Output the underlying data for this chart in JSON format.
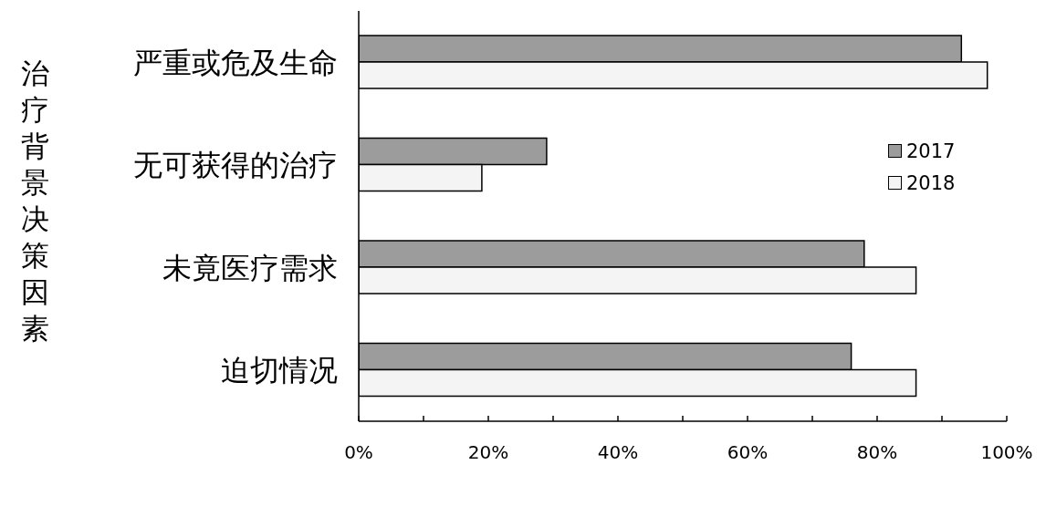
{
  "chart_data": {
    "type": "bar",
    "orientation": "horizontal",
    "ylabel": "治疗背景决策因素",
    "categories": [
      "严重或危及生命",
      "无可获得的治疗",
      "未竟医疗需求",
      "迫切情况"
    ],
    "series": [
      {
        "name": "2017",
        "color": "#9c9c9c",
        "values": [
          93,
          29,
          78,
          76
        ]
      },
      {
        "name": "2018",
        "color": "#f4f4f4",
        "values": [
          97,
          19,
          86,
          86
        ]
      }
    ],
    "xlim": [
      0,
      100
    ],
    "xticks": [
      {
        "value": 0,
        "label": "0%"
      },
      {
        "value": 10,
        "label": null
      },
      {
        "value": 20,
        "label": "20%"
      },
      {
        "value": 30,
        "label": null
      },
      {
        "value": 40,
        "label": "40%"
      },
      {
        "value": 50,
        "label": null
      },
      {
        "value": 60,
        "label": "60%"
      },
      {
        "value": 70,
        "label": null
      },
      {
        "value": 80,
        "label": "80%"
      },
      {
        "value": 90,
        "label": null
      },
      {
        "value": 100,
        "label": "100%"
      }
    ],
    "legend": "top right",
    "grid": false
  }
}
